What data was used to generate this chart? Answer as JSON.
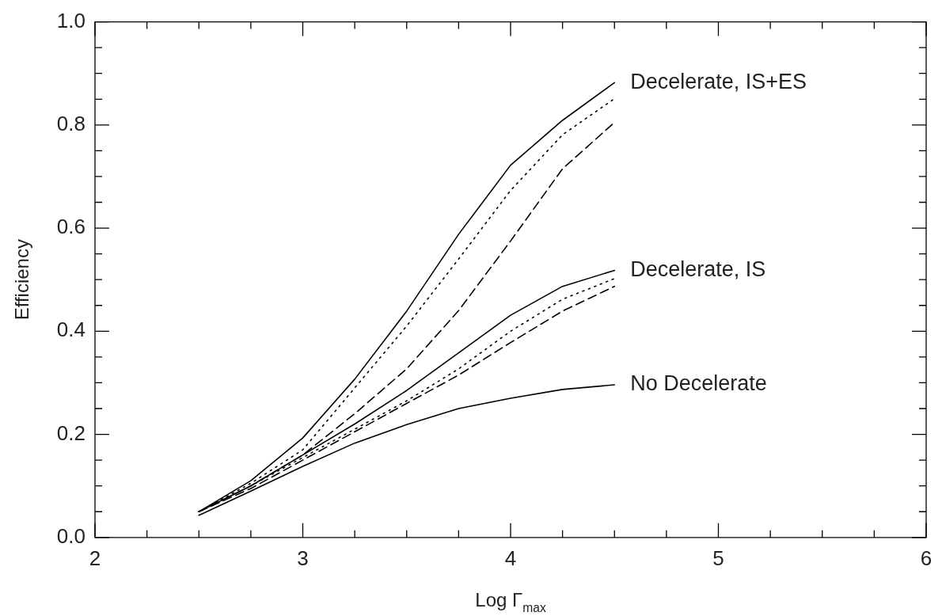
{
  "chart_data": {
    "type": "line",
    "xlabel": "Log Γ$_{max}$",
    "ylabel": "Efficiency",
    "x": [
      2.5,
      2.75,
      3,
      3.25,
      3.5,
      3.75,
      4,
      4.25,
      4.5
    ],
    "series": [
      {
        "name": "Decelerate, IS+ES",
        "color": "#000000",
        "line_style": "solid",
        "values": [
          0.05,
          0.11,
          0.193,
          0.307,
          0.439,
          0.588,
          0.722,
          0.809,
          0.882
        ]
      },
      {
        "color": "#000000",
        "line_style": "dotted",
        "values": [
          0.05,
          0.105,
          0.17,
          0.29,
          0.41,
          0.54,
          0.673,
          0.781,
          0.851
        ]
      },
      {
        "color": "#000000",
        "line_style": "dashed",
        "values": [
          0.05,
          0.1,
          0.16,
          0.24,
          0.327,
          0.44,
          0.575,
          0.715,
          0.805
        ]
      },
      {
        "name": "Decelerate, IS",
        "color": "#000000",
        "line_style": "solid",
        "values": [
          0.05,
          0.1,
          0.16,
          0.22,
          0.285,
          0.358,
          0.431,
          0.487,
          0.518
        ]
      },
      {
        "color": "#000000",
        "line_style": "dotted",
        "values": [
          0.05,
          0.1,
          0.155,
          0.21,
          0.265,
          0.327,
          0.4,
          0.462,
          0.502
        ]
      },
      {
        "color": "#000000",
        "line_style": "dashed",
        "values": [
          0.05,
          0.095,
          0.15,
          0.205,
          0.26,
          0.315,
          0.378,
          0.439,
          0.487
        ]
      },
      {
        "name": "No Decelerate",
        "color": "#000000",
        "line_style": "solid",
        "values": [
          0.043,
          0.09,
          0.138,
          0.183,
          0.219,
          0.25,
          0.27,
          0.287,
          0.296
        ]
      }
    ],
    "xlim": [
      2,
      6
    ],
    "xticks": [
      2,
      {
        "value": 2.25,
        "label": null
      },
      {
        "value": 2.5,
        "label": null
      },
      {
        "value": 2.75,
        "label": null
      },
      3,
      {
        "value": 3.25,
        "label": null
      },
      {
        "value": 3.5,
        "label": null
      },
      {
        "value": 3.75,
        "label": null
      },
      4,
      {
        "value": 4.25,
        "label": null
      },
      {
        "value": 4.5,
        "label": null
      },
      {
        "value": 4.75,
        "label": null
      },
      5,
      {
        "value": 5.25,
        "label": null
      },
      {
        "value": 5.5,
        "label": null
      },
      {
        "value": 5.75,
        "label": null
      },
      6
    ],
    "ylim": [
      0,
      1
    ],
    "yticks": [
      {
        "value": 0,
        "label": "0.0"
      },
      {
        "value": 0.05,
        "label": null
      },
      {
        "value": 0.1,
        "label": null
      },
      {
        "value": 0.15,
        "label": null
      },
      0.2,
      {
        "value": 0.25,
        "label": null
      },
      {
        "value": 0.3,
        "label": null
      },
      {
        "value": 0.35,
        "label": null
      },
      0.4,
      {
        "value": 0.45,
        "label": null
      },
      {
        "value": 0.5,
        "label": null
      },
      {
        "value": 0.55,
        "label": null
      },
      0.6,
      {
        "value": 0.65,
        "label": null
      },
      {
        "value": 0.7,
        "label": null
      },
      {
        "value": 0.75,
        "label": null
      },
      0.8,
      {
        "value": 0.85,
        "label": null
      },
      {
        "value": 0.9,
        "label": null
      },
      {
        "value": 0.95,
        "label": null
      },
      {
        "value": 1,
        "label": "1.0"
      }
    ],
    "grid": false,
    "legend": false,
    "marker": "none"
  }
}
